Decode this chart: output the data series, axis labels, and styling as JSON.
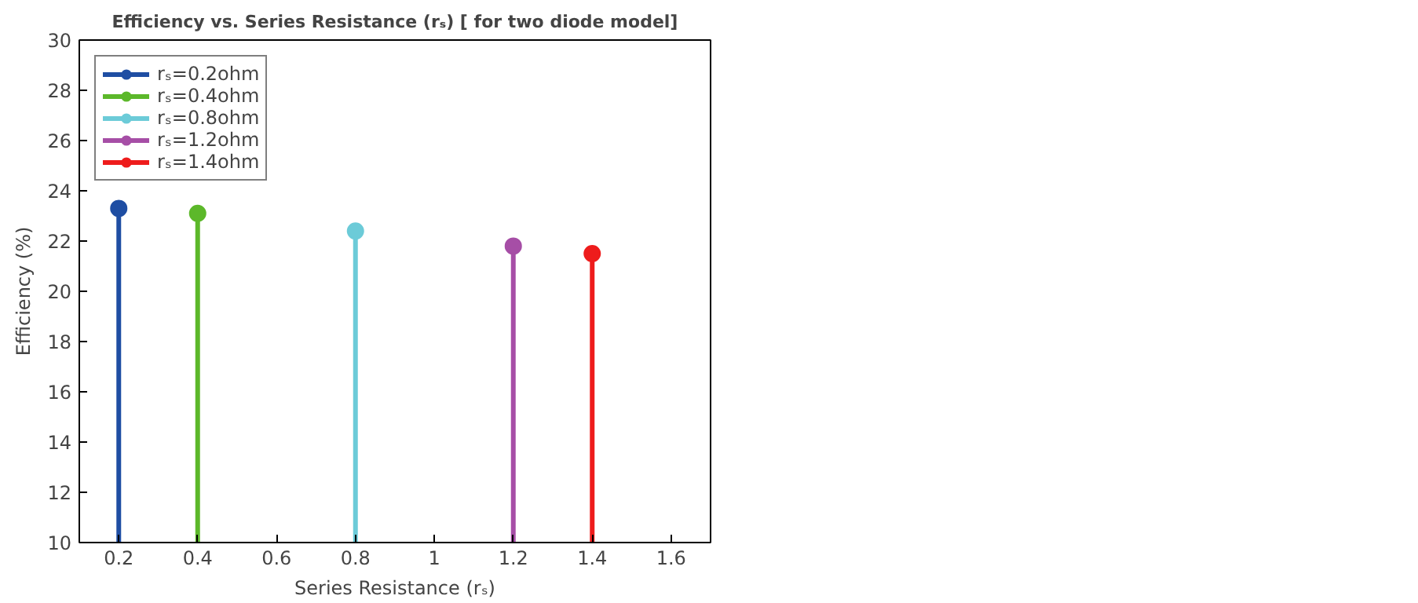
{
  "chart_data": {
    "type": "lollipop",
    "title": "Efficiency vs. Series Resistance (rₛ) [ for two diode model]",
    "xlabel": "Series Resistance (rₛ)",
    "ylabel": "Efficiency (%)",
    "series": [
      {
        "name": "rₛ=0.2ohm",
        "color": "#1f4ea3",
        "x": [
          0.2
        ],
        "values": [
          23.3
        ]
      },
      {
        "name": "rₛ=0.4ohm",
        "color": "#5cb82a",
        "x": [
          0.4
        ],
        "values": [
          23.1
        ]
      },
      {
        "name": "rₛ=0.8ohm",
        "color": "#6ccbd8",
        "x": [
          0.8
        ],
        "values": [
          22.4
        ]
      },
      {
        "name": "rₛ=1.2ohm",
        "color": "#a64ea6",
        "x": [
          1.2
        ],
        "values": [
          21.8
        ]
      },
      {
        "name": "rₛ=1.4ohm",
        "color": "#ee1c1c",
        "x": [
          1.4
        ],
        "values": [
          21.5
        ]
      }
    ],
    "xlim": [
      0.1,
      1.7
    ],
    "ylim": [
      10,
      30
    ],
    "xticks": [
      0.2,
      0.4,
      0.6,
      0.8,
      1,
      1.2,
      1.4,
      1.6
    ],
    "yticks": [
      10,
      12,
      14,
      16,
      18,
      20,
      22,
      24,
      26,
      28,
      30
    ],
    "legend": "top left",
    "marker": "circle",
    "grid": false
  }
}
